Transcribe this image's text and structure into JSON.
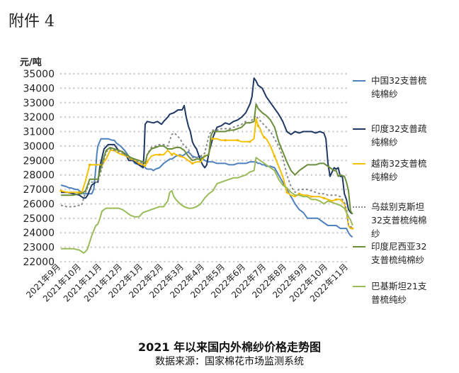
{
  "header": {
    "attachment_label": "附件 4"
  },
  "footer": {
    "title": "2021 年以来国内外棉纱价格走势图",
    "source": "数据来源：国家棉花市场监测系统"
  },
  "chart_data": {
    "type": "line",
    "ylabel": "元/吨",
    "ylim": [
      22000,
      35000
    ],
    "yticks": [
      22000,
      23000,
      24000,
      25000,
      26000,
      27000,
      28000,
      29000,
      30000,
      31000,
      32000,
      33000,
      34000,
      35000
    ],
    "xtick_labels": [
      "2021年9月",
      "2021年10月",
      "2021年11月",
      "2021年12月",
      "2022年1月",
      "2022年2月",
      "2022年3月",
      "2022年4月",
      "2022年5月",
      "2022年6月",
      "2022年7月",
      "2022年8月",
      "2022年9月",
      "2022年10月",
      "2022年11月"
    ],
    "grid": "horizontal-dotted",
    "legend_position": "right",
    "colors": {
      "china": "#4f81bd",
      "india_carded": "#1f3864",
      "vietnam": "#f5c100",
      "uzbekistan": "#8c8c8c",
      "indonesia": "#6b8e3a",
      "pakistan": "#9bbb59"
    },
    "series": [
      {
        "key": "china",
        "name": "中国32支普梳\n纯棉纱",
        "color": "#4f81bd",
        "dash": "",
        "marker": "",
        "x": [
          0,
          0.25,
          0.4,
          0.5,
          0.6,
          0.7,
          0.8,
          0.9,
          1.0,
          1.1,
          1.3,
          1.5,
          1.6,
          1.7,
          1.75,
          1.8,
          1.95,
          2.1,
          2.3,
          2.5,
          2.6,
          2.7,
          2.9,
          3.1,
          3.3,
          3.5,
          3.6,
          3.8,
          3.9,
          4.0,
          4.1,
          4.2,
          4.4,
          4.5,
          4.6,
          4.8,
          5.0,
          5.2,
          5.3,
          5.4,
          5.6,
          5.8,
          5.9,
          6.0,
          6.1,
          6.2,
          6.4,
          6.6,
          6.8,
          7.0,
          7.2,
          7.4,
          7.6,
          7.8,
          8.0,
          8.2,
          8.4,
          8.6,
          8.8,
          9.0,
          9.2,
          9.4,
          9.5,
          9.6,
          9.7,
          9.8,
          9.9,
          10.0,
          10.2,
          10.4,
          10.6,
          10.8,
          11.0,
          11.2,
          11.4,
          11.6,
          11.8,
          12.0,
          12.2,
          12.5,
          12.8,
          13.0,
          13.2,
          13.4,
          13.6,
          13.8,
          13.9,
          14.0,
          14.1,
          14.2
        ],
        "y": [
          27300,
          27200,
          27100,
          27100,
          27050,
          27000,
          27000,
          26900,
          26800,
          26700,
          26700,
          26700,
          27000,
          28500,
          29500,
          30000,
          30500,
          30500,
          30500,
          30400,
          30400,
          30200,
          30000,
          29700,
          29300,
          29000,
          28800,
          28700,
          28600,
          28700,
          28500,
          28400,
          28400,
          28300,
          28400,
          28500,
          28800,
          29000,
          29100,
          29100,
          29300,
          29400,
          29300,
          29400,
          29500,
          29600,
          29300,
          29200,
          29300,
          29000,
          28900,
          28900,
          28800,
          28800,
          28800,
          28700,
          28700,
          28800,
          28800,
          28800,
          28900,
          28900,
          28900,
          28800,
          28800,
          28700,
          28700,
          28600,
          28600,
          28500,
          28000,
          27500,
          27000,
          26500,
          26000,
          25600,
          25400,
          25000,
          25000,
          25000,
          24700,
          24500,
          24500,
          24500,
          24300,
          24300,
          24300,
          24000,
          23800,
          23700
        ]
      },
      {
        "key": "india_carded",
        "name": "印度32支普疏\n纯棉纱",
        "color": "#1f3864",
        "dash": "",
        "marker": "",
        "x": [
          0,
          0.3,
          0.6,
          0.9,
          1.0,
          1.1,
          1.2,
          1.3,
          1.5,
          1.7,
          1.8,
          1.9,
          2.1,
          2.3,
          2.6,
          2.8,
          3.0,
          3.2,
          3.3,
          3.5,
          3.7,
          3.9,
          4.0,
          4.05,
          4.1,
          4.2,
          4.5,
          4.7,
          4.9,
          5.0,
          5.2,
          5.3,
          5.5,
          5.7,
          5.9,
          6.0,
          6.1,
          6.2,
          6.3,
          6.4,
          6.5,
          6.6,
          6.8,
          6.9,
          7.0,
          7.1,
          7.2,
          7.4,
          7.6,
          7.8,
          8.0,
          8.2,
          8.4,
          8.6,
          8.8,
          9.0,
          9.1,
          9.2,
          9.3,
          9.4,
          9.5,
          9.6,
          9.8,
          10.0,
          10.2,
          10.4,
          10.6,
          10.8,
          11.0,
          11.2,
          11.4,
          11.6,
          11.8,
          12.0,
          12.2,
          12.4,
          12.6,
          12.8,
          12.9,
          13.0,
          13.1,
          13.2,
          13.3,
          13.4,
          13.5,
          13.6,
          13.7,
          13.8,
          13.9,
          14.0,
          14.1,
          14.2
        ],
        "y": [
          26800,
          26800,
          26700,
          26600,
          26500,
          26400,
          26400,
          26600,
          27300,
          27500,
          27500,
          28600,
          29800,
          30100,
          30100,
          29700,
          29600,
          29300,
          29000,
          29000,
          28800,
          28600,
          28500,
          29500,
          31500,
          31700,
          31600,
          31700,
          31500,
          31700,
          32000,
          32200,
          32300,
          32500,
          32500,
          32800,
          32000,
          31400,
          31000,
          30300,
          30000,
          29800,
          29000,
          28700,
          28500,
          28700,
          29500,
          30600,
          31300,
          31400,
          31600,
          31500,
          31700,
          31800,
          32000,
          32300,
          32600,
          32900,
          33400,
          34700,
          34500,
          34200,
          34000,
          33400,
          33000,
          32600,
          32200,
          31700,
          31000,
          30800,
          31000,
          30900,
          31000,
          31000,
          31000,
          30900,
          31000,
          30900,
          30500,
          28800,
          27900,
          28200,
          28500,
          28400,
          28500,
          27900,
          27900,
          26700,
          26300,
          25600,
          25400,
          25300
        ]
      },
      {
        "key": "vietnam",
        "name": "越南32支普梳\n纯棉纱",
        "color": "#f5c100",
        "dash": "",
        "marker": "square",
        "x": [
          0,
          0.3,
          0.6,
          0.9,
          1.0,
          1.2,
          1.4,
          1.6,
          1.8,
          2.0,
          2.2,
          2.4,
          2.6,
          2.8,
          3.0,
          3.2,
          3.4,
          3.6,
          3.8,
          4.0,
          4.1,
          4.2,
          4.4,
          4.6,
          4.8,
          5.0,
          5.2,
          5.4,
          5.5,
          5.6,
          5.8,
          6.0,
          6.2,
          6.4,
          6.6,
          6.8,
          7.0,
          7.2,
          7.3,
          7.4,
          7.6,
          7.8,
          8.0,
          8.2,
          8.4,
          8.6,
          8.8,
          9.0,
          9.2,
          9.4,
          9.5,
          9.6,
          9.7,
          9.8,
          9.9,
          10.0,
          10.2,
          10.4,
          10.6,
          10.8,
          11.0,
          11.2,
          11.4,
          11.6,
          11.8,
          12.0,
          12.2,
          12.4,
          12.6,
          12.8,
          13.0,
          13.2,
          13.4,
          13.6,
          13.8,
          13.9,
          14.0,
          14.1,
          14.2
        ],
        "y": [
          26900,
          26800,
          26800,
          26800,
          26700,
          27600,
          28700,
          28700,
          28700,
          28700,
          29100,
          29700,
          29700,
          29500,
          29400,
          29300,
          29100,
          29000,
          28800,
          28700,
          28600,
          28900,
          29300,
          29400,
          29400,
          29400,
          29700,
          29400,
          29500,
          29400,
          29300,
          29200,
          29000,
          28800,
          28900,
          28900,
          29300,
          29400,
          30500,
          30500,
          30500,
          30400,
          30400,
          30400,
          30400,
          30400,
          30300,
          30300,
          30300,
          30500,
          31900,
          31400,
          31200,
          30800,
          30600,
          30500,
          30000,
          29300,
          28600,
          27900,
          26800,
          26600,
          26500,
          26700,
          26600,
          26600,
          26500,
          26500,
          26500,
          26400,
          26300,
          26200,
          26300,
          26300,
          26000,
          25500,
          24500,
          24300,
          24300
        ]
      },
      {
        "key": "uzbekistan",
        "name": "乌兹别克斯坦\n32支普梳纯棉\n纱",
        "color": "#8c8c8c",
        "dash": "3,3",
        "marker": "",
        "x": [
          0,
          0.3,
          0.6,
          0.9,
          1.0,
          1.2,
          1.4,
          1.6,
          1.8,
          2.0,
          2.2,
          2.4,
          2.6,
          2.8,
          3.0,
          3.2,
          3.4,
          3.6,
          3.8,
          4.0,
          4.1,
          4.2,
          4.4,
          4.6,
          4.8,
          5.0,
          5.2,
          5.3,
          5.4,
          5.5,
          5.6,
          5.8,
          6.0,
          6.2,
          6.4,
          6.6,
          6.8,
          7.0,
          7.2,
          7.3,
          7.4,
          7.6,
          7.8,
          8.0,
          8.2,
          8.4,
          8.6,
          8.8,
          9.0,
          9.2,
          9.4,
          9.5,
          9.6,
          9.8,
          10.0,
          10.2,
          10.4,
          10.6,
          10.8,
          11.0,
          11.2,
          11.4,
          11.6,
          11.8,
          12.0,
          12.2,
          12.4,
          12.6,
          12.8,
          13.0,
          13.2,
          13.4,
          13.6,
          13.8,
          13.9,
          14.0,
          14.1,
          14.2
        ],
        "y": [
          25900,
          25800,
          25800,
          25900,
          25900,
          26800,
          27500,
          27500,
          27500,
          28500,
          29600,
          29800,
          29700,
          29600,
          29500,
          29300,
          29100,
          29000,
          28900,
          28800,
          28800,
          29400,
          29900,
          30000,
          30100,
          30100,
          30000,
          30400,
          30800,
          30900,
          30800,
          30500,
          30000,
          29800,
          29200,
          29200,
          29300,
          29500,
          30700,
          31000,
          31100,
          31100,
          31200,
          31200,
          31200,
          31300,
          31400,
          31500,
          31700,
          31600,
          32000,
          32100,
          31900,
          31600,
          31300,
          31000,
          30500,
          30000,
          29200,
          28000,
          27200,
          26800,
          27000,
          27000,
          27000,
          26900,
          26800,
          26700,
          26700,
          26600,
          26600,
          26600,
          26500,
          26100,
          25600,
          24500,
          24400,
          24400
        ]
      },
      {
        "key": "indonesia",
        "name": "印度尼西亚32\n支普梳纯棉纱",
        "color": "#6b8e3a",
        "dash": "",
        "marker": "",
        "x": [
          0,
          0.3,
          0.6,
          0.9,
          1.0,
          1.2,
          1.4,
          1.6,
          1.8,
          2.0,
          2.2,
          2.4,
          2.6,
          2.8,
          3.0,
          3.2,
          3.4,
          3.6,
          3.8,
          4.0,
          4.1,
          4.2,
          4.4,
          4.6,
          4.8,
          5.0,
          5.2,
          5.4,
          5.6,
          5.8,
          6.0,
          6.2,
          6.4,
          6.6,
          6.8,
          7.0,
          7.2,
          7.3,
          7.4,
          7.6,
          7.8,
          8.0,
          8.2,
          8.4,
          8.6,
          8.8,
          9.0,
          9.2,
          9.4,
          9.5,
          9.6,
          9.8,
          10.0,
          10.2,
          10.4,
          10.6,
          10.8,
          11.0,
          11.2,
          11.4,
          11.6,
          11.8,
          12.0,
          12.2,
          12.4,
          12.6,
          12.8,
          13.0,
          13.2,
          13.3,
          13.4,
          13.5,
          13.6,
          13.8,
          13.9,
          14.0,
          14.1,
          14.2
        ],
        "y": [
          26600,
          26600,
          26600,
          26700,
          26700,
          26900,
          27700,
          27700,
          27700,
          28800,
          29700,
          29900,
          29800,
          29700,
          29600,
          29400,
          29200,
          29100,
          29000,
          28900,
          28800,
          29400,
          29800,
          29900,
          30000,
          30000,
          29800,
          29800,
          29900,
          29900,
          29700,
          29300,
          29000,
          29100,
          29100,
          29300,
          29400,
          30700,
          31000,
          31000,
          31000,
          31000,
          31100,
          31100,
          31200,
          31300,
          31600,
          31600,
          31700,
          32900,
          32600,
          32300,
          32100,
          31800,
          31300,
          30300,
          29600,
          28900,
          28300,
          28000,
          28300,
          28500,
          28700,
          28700,
          28700,
          28800,
          28800,
          28600,
          28400,
          28300,
          28300,
          27900,
          28000,
          27900,
          27500,
          26900,
          25500,
          25300
        ]
      },
      {
        "key": "pakistan",
        "name": "巴基斯坦21支\n普梳纯纱",
        "color": "#9bbb59",
        "dash": "",
        "marker": "",
        "x": [
          0,
          0.3,
          0.6,
          0.9,
          1.0,
          1.1,
          1.2,
          1.3,
          1.5,
          1.7,
          1.8,
          1.9,
          2.0,
          2.2,
          2.4,
          2.6,
          2.8,
          3.0,
          3.2,
          3.4,
          3.6,
          3.8,
          4.0,
          4.2,
          4.4,
          4.6,
          4.8,
          5.0,
          5.2,
          5.3,
          5.4,
          5.5,
          5.6,
          5.8,
          6.0,
          6.2,
          6.4,
          6.6,
          6.8,
          7.0,
          7.2,
          7.4,
          7.6,
          7.8,
          8.0,
          8.2,
          8.4,
          8.6,
          8.8,
          9.0,
          9.2,
          9.4,
          9.5,
          9.6,
          9.8,
          10.0,
          10.2,
          10.4,
          10.6,
          10.8,
          11.0,
          11.2,
          11.4,
          11.6,
          11.8,
          12.0,
          12.2,
          12.4,
          12.6,
          12.8,
          13.0,
          13.2,
          13.4,
          13.6,
          13.8,
          13.9,
          14.0,
          14.1,
          14.2
        ],
        "y": [
          22900,
          22900,
          22900,
          22800,
          22700,
          22600,
          22700,
          22900,
          23800,
          24500,
          24600,
          25000,
          25500,
          25700,
          25700,
          25700,
          25700,
          25600,
          25400,
          25200,
          25100,
          25100,
          25400,
          25500,
          25600,
          25700,
          25800,
          25800,
          26200,
          26800,
          26900,
          26500,
          26300,
          26000,
          25800,
          25700,
          25700,
          25800,
          26000,
          26400,
          26700,
          26900,
          27400,
          27500,
          27600,
          27700,
          27800,
          27800,
          27900,
          28000,
          28200,
          28300,
          29200,
          29100,
          28900,
          28700,
          28500,
          28300,
          27700,
          27300,
          27100,
          26800,
          26600,
          26600,
          26500,
          26500,
          26300,
          26300,
          26200,
          26000,
          26200,
          26100,
          26000,
          25900,
          25700,
          25400,
          25100,
          24900,
          24500
        ]
      }
    ]
  }
}
